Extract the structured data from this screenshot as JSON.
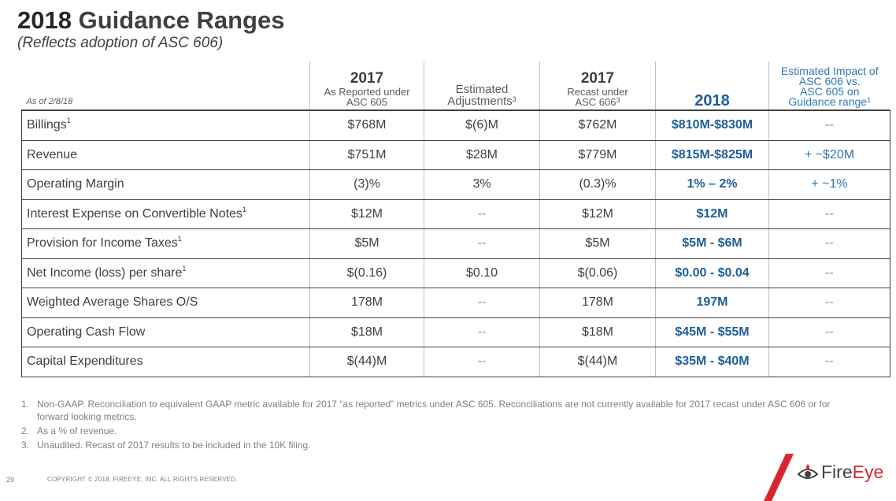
{
  "title": {
    "year": "2018",
    "rest": "Guidance Ranges"
  },
  "subtitle": "(Reflects adoption of ASC 606)",
  "table": {
    "as_of": "As of 2/8/18",
    "headers": {
      "col1": {
        "year": "2017",
        "line1": "As Reported under",
        "line2": "ASC 605"
      },
      "col2": {
        "line1": "Estimated",
        "line2": "Adjustments",
        "sup": "3"
      },
      "col3": {
        "year": "2017",
        "line1": "Recast under",
        "line2": "ASC 606",
        "sup": "3"
      },
      "col4": {
        "year": "2018"
      },
      "col5": {
        "line1": "Estimated Impact of",
        "line2": "ASC 606 vs.",
        "line3": "ASC 605 on",
        "line4": "Guidance range",
        "sup": "1"
      }
    },
    "rows": [
      {
        "label": "Billings",
        "sup": "1",
        "c1": "$768M",
        "c2": "$(6)M",
        "c3": "$762M",
        "c4": "$810M-$830M",
        "c5": "--"
      },
      {
        "label": "Revenue",
        "sup": "",
        "c1": "$751M",
        "c2": "$28M",
        "c3": "$779M",
        "c4": "$815M-$825M",
        "c5": "+ ~$20M"
      },
      {
        "label": "Operating Margin",
        "sup": "",
        "c1": "(3)%",
        "c2": "3%",
        "c3": "(0.3)%",
        "c4": "1% – 2%",
        "c5": "+ ~1%"
      },
      {
        "label": "Interest Expense on Convertible Notes",
        "sup": "1",
        "c1": "$12M",
        "c2": "--",
        "c3": "$12M",
        "c4": "$12M",
        "c5": "--"
      },
      {
        "label": "Provision for Income Taxes",
        "sup": "1",
        "c1": "$5M",
        "c2": "--",
        "c3": "$5M",
        "c4": "$5M - $6M",
        "c5": "--"
      },
      {
        "label": "Net Income (loss) per share",
        "sup": "1",
        "c1": "$(0.16)",
        "c2": "$0.10",
        "c3": "$(0.06)",
        "c4": "$0.00 - $0.04",
        "c5": "--"
      },
      {
        "label": "Weighted Average Shares O/S",
        "sup": "",
        "c1": "178M",
        "c2": "--",
        "c3": "178M",
        "c4": "197M",
        "c5": "--"
      },
      {
        "label": "Operating Cash Flow",
        "sup": "",
        "c1": "$18M",
        "c2": "--",
        "c3": "$18M",
        "c4": "$45M - $55M",
        "c5": "--"
      },
      {
        "label": "Capital Expenditures",
        "sup": "",
        "c1": "$(44)M",
        "c2": "--",
        "c3": "$(44)M",
        "c4": "$35M - $40M",
        "c5": "--"
      }
    ]
  },
  "footnotes": [
    {
      "num": "1.",
      "text": "Non-GAAP.  Reconciliation to equivalent GAAP metric available for 2017 “as reported” metrics under ASC 605.  Reconciliations are not currently available for 2017 recast under ASC 606 or for forward looking metrics."
    },
    {
      "num": "2.",
      "text": "As a % of revenue."
    },
    {
      "num": "3.",
      "text": "Unaudited. Recast of 2017 results to be included in the 10K filing."
    }
  ],
  "footer": {
    "page_number": "29",
    "copyright": "COPYRIGHT © 2018, FIREEYE, INC. ALL RIGHTS RESERVED."
  },
  "logo": {
    "part1": "Fire",
    "part2": "Eye",
    "icon": "fireeye-eye-icon"
  },
  "colors": {
    "accent_blue": "#1f5f99",
    "impact_blue": "#2e78b8",
    "logo_red": "#d9262c"
  }
}
